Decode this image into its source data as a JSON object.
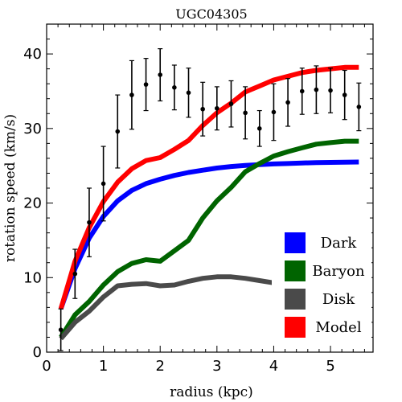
{
  "chart_data": {
    "type": "line",
    "title": "UGC04305",
    "xlabel": "radius (kpc)",
    "ylabel": "rotation speed (km/s)",
    "xlim": [
      0,
      5.75
    ],
    "ylim": [
      0,
      44
    ],
    "x_ticks": [
      0,
      1,
      2,
      3,
      4,
      5
    ],
    "y_ticks": [
      0,
      10,
      20,
      30,
      40
    ],
    "legend_position": "bottom-right",
    "series": [
      {
        "name": "Dark",
        "color": "#0000ff",
        "x": [
          0.25,
          0.5,
          0.75,
          1.0,
          1.25,
          1.5,
          1.75,
          2.0,
          2.25,
          2.5,
          2.75,
          3.0,
          3.25,
          3.5,
          3.75,
          4.0,
          4.25,
          4.5,
          4.75,
          5.0,
          5.25,
          5.5
        ],
        "y": [
          5.8,
          11.2,
          15.3,
          18.2,
          20.3,
          21.7,
          22.6,
          23.2,
          23.7,
          24.1,
          24.4,
          24.7,
          24.9,
          25.05,
          25.15,
          25.25,
          25.3,
          25.38,
          25.42,
          25.45,
          25.48,
          25.5
        ]
      },
      {
        "name": "Baryon",
        "color": "#006400",
        "x": [
          0.25,
          0.5,
          0.75,
          1.0,
          1.25,
          1.5,
          1.75,
          2.0,
          2.25,
          2.5,
          2.75,
          3.0,
          3.25,
          3.5,
          3.75,
          4.0,
          4.25,
          4.5,
          4.75,
          5.0,
          5.25,
          5.5
        ],
        "y": [
          2.0,
          5.0,
          6.8,
          9.0,
          10.8,
          11.9,
          12.4,
          12.2,
          13.6,
          15.0,
          18.0,
          20.3,
          22.1,
          24.2,
          25.3,
          26.3,
          26.9,
          27.4,
          27.9,
          28.1,
          28.3,
          28.3
        ]
      },
      {
        "name": "Disk",
        "color": "#4a4a4a",
        "x": [
          0.25,
          0.5,
          0.75,
          1.0,
          1.25,
          1.5,
          1.75,
          2.0,
          2.25,
          2.5,
          2.75,
          3.0,
          3.25,
          3.5,
          3.75,
          4.0,
          4.25,
          4.5,
          4.75,
          5.0,
          5.25,
          5.5
        ],
        "y": [
          1.8,
          4.0,
          5.5,
          7.4,
          8.9,
          9.1,
          9.2,
          8.9,
          9.0,
          9.5,
          9.9,
          10.1,
          10.1,
          9.9,
          9.6,
          9.3,
          9.0,
          8.8,
          8.6,
          8.4,
          8.1,
          7.9
        ]
      },
      {
        "name": "Model",
        "color": "#ff0000",
        "x": [
          0.25,
          0.5,
          0.75,
          1.0,
          1.25,
          1.5,
          1.75,
          2.0,
          2.25,
          2.5,
          2.75,
          3.0,
          3.25,
          3.5,
          3.75,
          4.0,
          4.25,
          4.5,
          4.75,
          5.0,
          5.25,
          5.5
        ],
        "y": [
          5.8,
          12.2,
          16.7,
          20.2,
          22.8,
          24.6,
          25.7,
          26.1,
          27.2,
          28.4,
          30.4,
          32.1,
          33.4,
          34.9,
          35.7,
          36.5,
          37.0,
          37.5,
          37.8,
          38.0,
          38.2,
          38.2
        ]
      }
    ],
    "observed": {
      "x": [
        0.25,
        0.5,
        0.75,
        1.0,
        1.25,
        1.5,
        1.75,
        2.0,
        2.25,
        2.5,
        2.75,
        3.0,
        3.25,
        3.5,
        3.75,
        4.0,
        4.25,
        4.5,
        4.75,
        5.0,
        5.25,
        5.5
      ],
      "y": [
        3.0,
        10.5,
        17.4,
        22.6,
        29.6,
        34.5,
        35.9,
        37.2,
        35.5,
        34.8,
        32.6,
        32.7,
        33.3,
        32.1,
        30.0,
        32.2,
        33.5,
        35.0,
        35.2,
        35.1,
        34.5,
        32.9
      ],
      "err": [
        2.8,
        3.3,
        4.6,
        5.0,
        4.9,
        4.6,
        3.5,
        3.5,
        3.0,
        3.3,
        3.6,
        2.9,
        3.1,
        3.5,
        2.4,
        3.8,
        3.2,
        3.1,
        3.2,
        3.0,
        3.3,
        3.2
      ]
    }
  }
}
